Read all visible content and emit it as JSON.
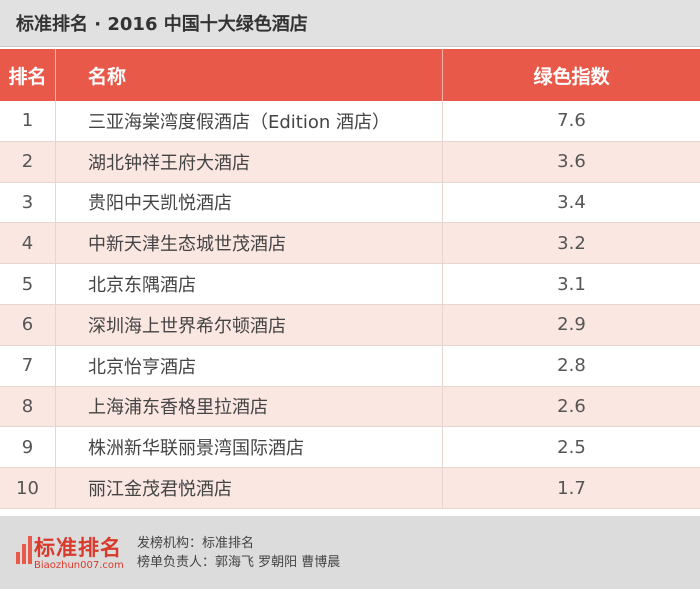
{
  "title": "标准排名 · 2016 中国十大绿色酒店",
  "table": {
    "headers": {
      "rank": "排名",
      "name": "名称",
      "score": "绿色指数"
    },
    "rows": [
      {
        "rank": "1",
        "name": "三亚海棠湾度假酒店（Edition 酒店）",
        "score": "7.6"
      },
      {
        "rank": "2",
        "name": "湖北钟祥王府大酒店",
        "score": "3.6"
      },
      {
        "rank": "3",
        "name": "贵阳中天凯悦酒店",
        "score": "3.4"
      },
      {
        "rank": "4",
        "name": "中新天津生态城世茂酒店",
        "score": "3.2"
      },
      {
        "rank": "5",
        "name": "北京东隅酒店",
        "score": "3.1"
      },
      {
        "rank": "6",
        "name": "深圳海上世界希尔顿酒店",
        "score": "2.9"
      },
      {
        "rank": "7",
        "name": "北京怡亨酒店",
        "score": "2.8"
      },
      {
        "rank": "8",
        "name": "上海浦东香格里拉酒店",
        "score": "2.6"
      },
      {
        "rank": "9",
        "name": "株洲新华联丽景湾国际酒店",
        "score": "2.5"
      },
      {
        "rank": "10",
        "name": "丽江金茂君悦酒店",
        "score": "1.7"
      }
    ]
  },
  "footer": {
    "logo_text": "标准排名",
    "logo_sub": "Biaozhun007.com",
    "publisher_line": "发榜机构：标准排名",
    "responsible_line": "榜单负责人：郭海飞  罗朝阳  曹博晨"
  },
  "colors": {
    "header_red": "#e8594a",
    "row_alt": "#fbe7e2",
    "title_bar": "#e1e1e1"
  }
}
